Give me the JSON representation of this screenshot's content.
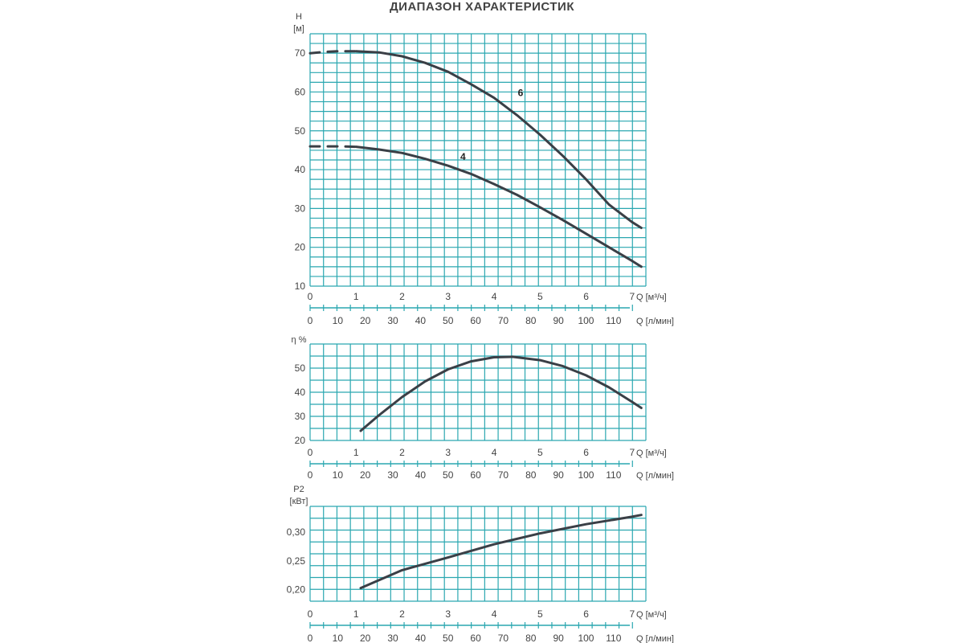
{
  "title": "ДИАПАЗОН ХАРАКТЕРИСТИК",
  "colors": {
    "grid": "#2aa7b0",
    "curve": "#3a3f46",
    "axis_text": "#444444"
  },
  "x_axis": {
    "q_m3h": {
      "label": "Q [м³/ч]",
      "ticks": [
        "0",
        "1",
        "2",
        "3",
        "4",
        "5",
        "6",
        "7"
      ],
      "range": [
        0,
        7.3
      ]
    },
    "q_lmin": {
      "label": "Q [л/мин]",
      "ticks": [
        "0",
        "10",
        "20",
        "30",
        "40",
        "50",
        "60",
        "70",
        "80",
        "90",
        "100",
        "110"
      ],
      "range": [
        0,
        121.7
      ]
    }
  },
  "chart_data": [
    {
      "type": "line",
      "name": "head",
      "ylabel": "H",
      "yunit": "[м]",
      "ylim": [
        10,
        75
      ],
      "yticks": [
        "10",
        "20",
        "30",
        "40",
        "50",
        "60",
        "70"
      ],
      "grid": true,
      "series": [
        {
          "name": "6",
          "solid_from": 1.0,
          "x": [
            0,
            0.3,
            0.6,
            1.0,
            1.5,
            2.0,
            2.5,
            3.0,
            3.5,
            4.0,
            4.5,
            5.0,
            5.5,
            6.0,
            6.5,
            7.0,
            7.2
          ],
          "y": [
            70,
            70.3,
            70.5,
            70.5,
            70.2,
            69.2,
            67.5,
            65.2,
            62,
            58.5,
            54,
            49,
            43.5,
            37.5,
            31,
            26.5,
            25
          ]
        },
        {
          "name": "4",
          "solid_from": 1.0,
          "x": [
            0,
            0.3,
            0.6,
            1.0,
            1.5,
            2.0,
            2.5,
            3.0,
            3.5,
            4.0,
            4.5,
            5.0,
            5.5,
            6.0,
            6.5,
            7.0,
            7.2
          ],
          "y": [
            46,
            46,
            46,
            45.9,
            45.2,
            44.3,
            42.8,
            41,
            38.9,
            36.3,
            33.5,
            30.3,
            27,
            23.5,
            20,
            16.5,
            15
          ]
        }
      ],
      "labels": [
        {
          "text": "6",
          "x": 4.4,
          "y": 59
        },
        {
          "text": "4",
          "x": 3.15,
          "y": 42.5
        }
      ]
    },
    {
      "type": "line",
      "name": "efficiency",
      "ylabel": "η %",
      "yunit": "",
      "ylim": [
        20,
        60
      ],
      "yticks": [
        "20",
        "30",
        "40",
        "50"
      ],
      "grid": true,
      "series": [
        {
          "name": "",
          "x": [
            1.1,
            1.5,
            2.0,
            2.5,
            3.0,
            3.5,
            4.0,
            4.4,
            5.0,
            5.5,
            6.0,
            6.5,
            7.0,
            7.2
          ],
          "y": [
            24,
            30.5,
            38,
            44.5,
            49.5,
            52.8,
            54.5,
            54.7,
            53.3,
            50.8,
            47,
            42,
            36,
            33.5
          ]
        }
      ]
    },
    {
      "type": "line",
      "name": "power",
      "ylabel": "P2",
      "yunit": "[кВт]",
      "ylim": [
        0.18,
        0.345
      ],
      "yticks": [
        "0,20",
        "0,25",
        "0,30"
      ],
      "ytick_values": [
        0.2,
        0.25,
        0.3
      ],
      "grid": true,
      "series": [
        {
          "name": "",
          "x": [
            1.1,
            2.0,
            3.0,
            4.0,
            5.0,
            6.0,
            7.0,
            7.2
          ],
          "y": [
            0.203,
            0.234,
            0.256,
            0.279,
            0.298,
            0.314,
            0.327,
            0.33
          ]
        }
      ]
    }
  ]
}
